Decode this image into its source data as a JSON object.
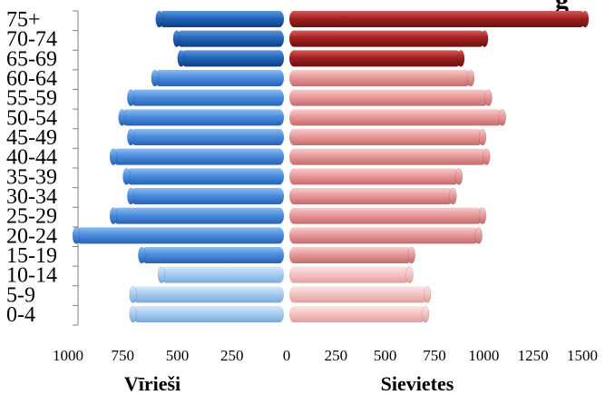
{
  "chart_data": {
    "type": "bar",
    "orientation": "horizontal",
    "layout": "population-pyramid",
    "title_fragment": "g",
    "categories": [
      "0-4",
      "5-9",
      "10-14",
      "15-19",
      "20-24",
      "25-29",
      "30-34",
      "35-39",
      "40-44",
      "45-49",
      "50-54",
      "55-59",
      "60-64",
      "65-69",
      "70-74",
      "75+"
    ],
    "series": [
      {
        "name": "Vīrieši",
        "side": "left",
        "values": [
          690,
          690,
          560,
          650,
          950,
          780,
          700,
          720,
          780,
          700,
          740,
          700,
          590,
          470,
          490,
          570
        ]
      },
      {
        "name": "Sievietes",
        "side": "right",
        "values": [
          690,
          700,
          610,
          620,
          960,
          980,
          830,
          860,
          1000,
          980,
          1080,
          1010,
          920,
          870,
          990,
          1500
        ]
      }
    ],
    "left_ticks": [
      1000,
      750,
      500,
      250,
      0
    ],
    "right_ticks": [
      250,
      500,
      750,
      1000,
      1250,
      1500
    ],
    "left_xlim": [
      0,
      1000
    ],
    "right_xlim": [
      0,
      1500
    ],
    "grid": false,
    "colors": {
      "male_light": "#aacdf2",
      "male_mid": "#4d8ee0",
      "male_dark": "#2366bb",
      "female_light": "#f7c4c4",
      "female_mid": "#e89a9a",
      "female_dark": "#a32121"
    }
  }
}
